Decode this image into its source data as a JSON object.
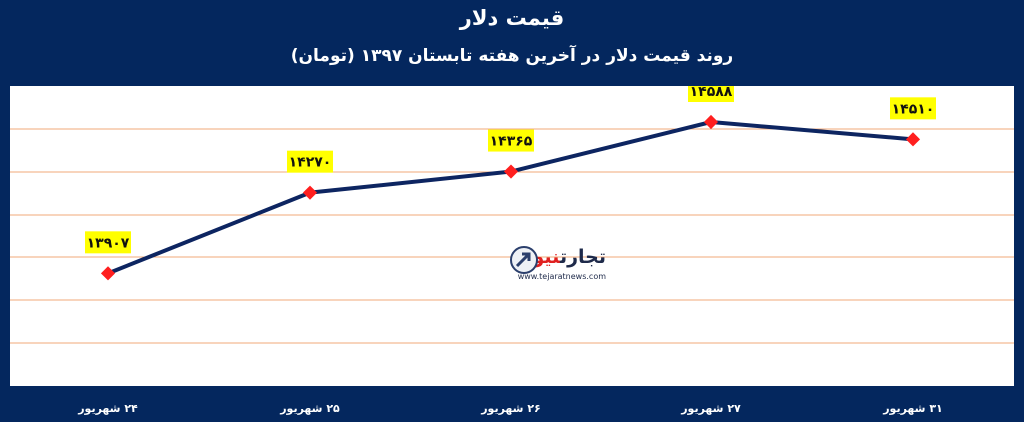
{
  "chart_data": {
    "type": "line",
    "title": "قیمت دلار",
    "subtitle": "روند قیمت دلار در آخرین هفته تابستان ۱۳۹۷ (تومان)",
    "categories": [
      "۲۴ شهریور",
      "۲۵ شهریور",
      "۲۶ شهریور",
      "۲۷ شهریور",
      "۳۱ شهریور"
    ],
    "values": [
      13907,
      14270,
      14365,
      14588,
      14510
    ],
    "data_labels": [
      "۱۳۹۰۷",
      "۱۴۲۷۰",
      "۱۴۳۶۵",
      "۱۴۵۸۸",
      "۱۴۵۱۰"
    ],
    "ylim": [
      13400,
      14750
    ],
    "grid": true,
    "colors": {
      "line": "#0d2561",
      "marker": "#ff1f1f",
      "label_bg": "#ffff00",
      "grid": "#f0a878",
      "frame": "#04275e"
    }
  },
  "watermark": {
    "name": "تجارت",
    "name_accent": "نیوز",
    "url": "www.tejaratnews.com"
  }
}
